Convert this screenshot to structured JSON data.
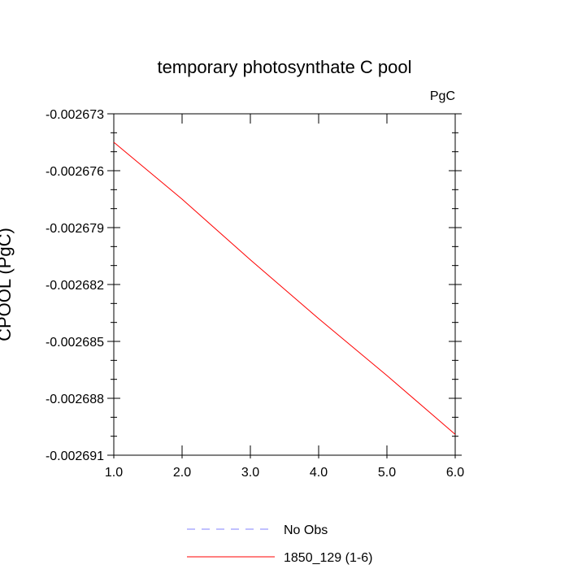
{
  "chart_data": {
    "type": "line",
    "title": "temporary photosynthate C pool",
    "units_label": "PgC",
    "ylabel": "CPOOL  (PgC)",
    "xlabel": "",
    "xlim": [
      1.0,
      6.0
    ],
    "ylim": [
      -0.002691,
      -0.002673
    ],
    "x_ticks": [
      1.0,
      2.0,
      3.0,
      4.0,
      5.0,
      6.0
    ],
    "x_tick_labels": [
      "1.0",
      "2.0",
      "3.0",
      "4.0",
      "5.0",
      "6.0"
    ],
    "y_ticks": [
      -0.002673,
      -0.002676,
      -0.002679,
      -0.002682,
      -0.002685,
      -0.002688,
      -0.002691
    ],
    "y_tick_labels": [
      "-0.002673",
      "-0.002676",
      "-0.002679",
      "-0.002682",
      "-0.002685",
      "-0.002688",
      "-0.002691"
    ],
    "grid": false,
    "legend_position": "bottom-center",
    "series": [
      {
        "name": "1850_129 (1-6)",
        "color": "#ff0000",
        "dash": "solid",
        "x": [
          1.0,
          2.0,
          3.0,
          4.0,
          5.0,
          6.0
        ],
        "y": [
          -0.0026745,
          -0.0026775,
          -0.0026807,
          -0.0026838,
          -0.0026868,
          -0.0026899
        ]
      }
    ],
    "legend": [
      {
        "label": "No Obs",
        "color": "#8080ff",
        "dash": "dashed"
      },
      {
        "label": "1850_129 (1-6)",
        "color": "#ff0000",
        "dash": "solid"
      }
    ]
  }
}
